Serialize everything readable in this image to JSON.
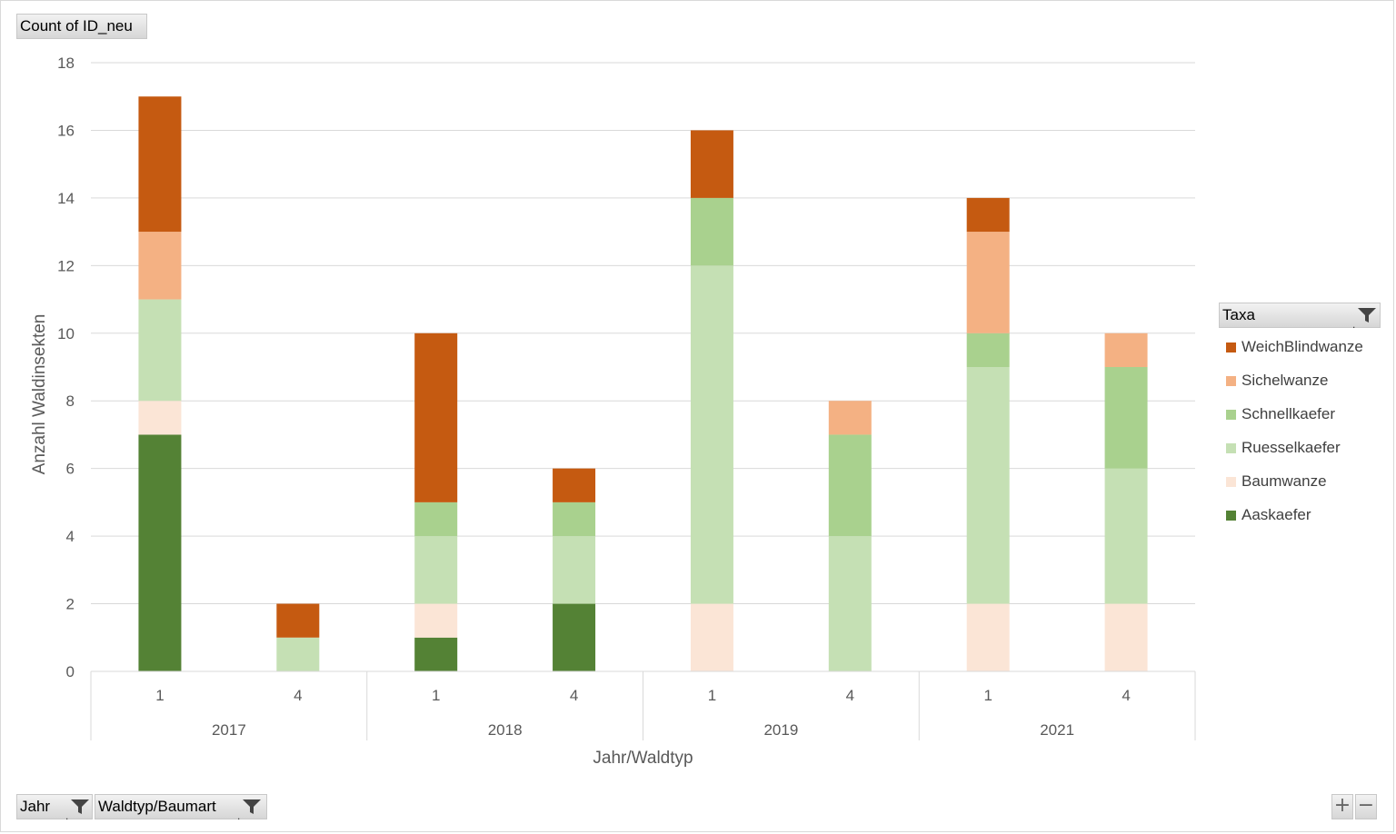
{
  "value_button": {
    "label": "Count of ID_neu"
  },
  "legend": {
    "title": "Taxa",
    "items": [
      {
        "label": "WeichBlindwanze",
        "color": "#c55a11"
      },
      {
        "label": "Sichelwanze",
        "color": "#f4b183"
      },
      {
        "label": "Schnellkaefer",
        "color": "#a9d18e"
      },
      {
        "label": "Ruesselkaefer",
        "color": "#c5e0b4"
      },
      {
        "label": "Baumwanze",
        "color": "#fbe5d6"
      },
      {
        "label": "Aaskaefer",
        "color": "#548235"
      }
    ]
  },
  "axis_buttons": [
    {
      "label": "Jahr"
    },
    {
      "label": "Waldtyp/Baumart"
    }
  ],
  "zoom": {
    "plus": "+",
    "minus": "−"
  },
  "chart_data": {
    "type": "bar",
    "stacked": true,
    "xlabel": "Jahr/Waldtyp",
    "ylabel": "Anzahl Waldinsekten",
    "ylim": [
      0,
      18
    ],
    "yticks": [
      0,
      2,
      4,
      6,
      8,
      10,
      12,
      14,
      16,
      18
    ],
    "grid": true,
    "legend_position": "right",
    "groups": [
      {
        "label": "2017",
        "categories": [
          "1",
          "4"
        ]
      },
      {
        "label": "2018",
        "categories": [
          "1",
          "4"
        ]
      },
      {
        "label": "2019",
        "categories": [
          "1",
          "4"
        ]
      },
      {
        "label": "2021",
        "categories": [
          "1",
          "4"
        ]
      }
    ],
    "categories": [
      "2017 / 1",
      "2017 / 4",
      "2018 / 1",
      "2018 / 4",
      "2019 / 1",
      "2019 / 4",
      "2021 / 1",
      "2021 / 4"
    ],
    "series": [
      {
        "name": "Aaskaefer",
        "color": "#548235",
        "values": [
          7,
          0,
          1,
          2,
          0,
          0,
          0,
          0
        ]
      },
      {
        "name": "Baumwanze",
        "color": "#fbe5d6",
        "values": [
          1,
          0,
          1,
          0,
          2,
          0,
          2,
          2
        ]
      },
      {
        "name": "Ruesselkaefer",
        "color": "#c5e0b4",
        "values": [
          3,
          1,
          2,
          2,
          10,
          4,
          7,
          4
        ]
      },
      {
        "name": "Schnellkaefer",
        "color": "#a9d18e",
        "values": [
          0,
          0,
          1,
          1,
          2,
          3,
          1,
          3
        ]
      },
      {
        "name": "Sichelwanze",
        "color": "#f4b183",
        "values": [
          2,
          0,
          0,
          0,
          0,
          1,
          3,
          1
        ]
      },
      {
        "name": "WeichBlindwanze",
        "color": "#c55a11",
        "values": [
          4,
          1,
          5,
          1,
          2,
          0,
          1,
          0
        ]
      }
    ]
  }
}
